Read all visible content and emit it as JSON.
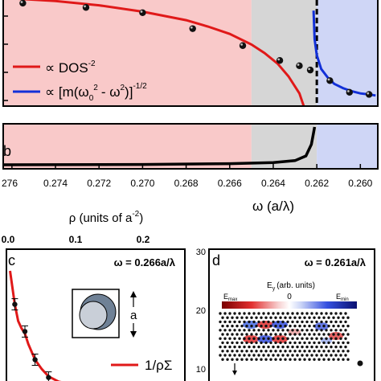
{
  "figure": {
    "x_axis": {
      "label": "ω (a/λ)",
      "ticks": [
        "276",
        "0.274",
        "0.272",
        "0.270",
        "0.268",
        "0.266",
        "0.264",
        "0.262",
        "0.260"
      ],
      "reversed": true,
      "range": [
        0.2764,
        0.2592
      ]
    },
    "top_axis": {
      "label": "ρ (units of a⁻²)",
      "ticks": [
        "0.0",
        "0.1",
        "0.2"
      ]
    },
    "colors": {
      "red_region": "#f9c9c9",
      "gray_region": "#d6d6d6",
      "blue_region": "#cfd6f6",
      "red_curve": "#e01919",
      "blue_curve": "#1230d8",
      "black": "#000000"
    }
  },
  "chart_data": [
    {
      "panel": "a",
      "type": "scatter",
      "x_range": [
        0.2764,
        0.2592
      ],
      "regions": [
        {
          "name": "red",
          "x": [
            0.2764,
            0.265
          ]
        },
        {
          "name": "gray",
          "x": [
            0.265,
            0.262
          ]
        },
        {
          "name": "blue",
          "x": [
            0.262,
            0.2592
          ]
        }
      ],
      "band_edge": 0.262,
      "points": [
        {
          "x": 0.2755,
          "y": 0.97
        },
        {
          "x": 0.2726,
          "y": 0.93
        },
        {
          "x": 0.27,
          "y": 0.88
        },
        {
          "x": 0.2677,
          "y": 0.73
        },
        {
          "x": 0.2654,
          "y": 0.57
        },
        {
          "x": 0.2637,
          "y": 0.43
        },
        {
          "x": 0.2628,
          "y": 0.38
        },
        {
          "x": 0.2623,
          "y": 0.34
        },
        {
          "x": 0.2614,
          "y": 0.24
        },
        {
          "x": 0.2605,
          "y": 0.13
        },
        {
          "x": 0.2596,
          "y": 0.11
        }
      ],
      "series": [
        {
          "name": "DOS⁻²",
          "legend_text": "∝ DOS",
          "legend_sup": "-2",
          "color": "#e01919",
          "x": [
            0.2764,
            0.274,
            0.272,
            0.27,
            0.268,
            0.267,
            0.266,
            0.265,
            0.2644,
            0.2638,
            0.2633,
            0.2628,
            0.2626
          ],
          "y": [
            1.02,
            0.99,
            0.95,
            0.89,
            0.81,
            0.75,
            0.68,
            0.58,
            0.5,
            0.4,
            0.28,
            0.12,
            0.0
          ]
        },
        {
          "name": "∝ [m(ω₀² - ω²)]^(-1/2)",
          "legend_text": "∝ [m(ω",
          "legend_sub": "0",
          "legend_mid": "- ω",
          "legend_tail": ")]",
          "legend_sup": "-1/2",
          "color": "#1230d8",
          "x": [
            0.26215,
            0.2621,
            0.262,
            0.2618,
            0.2615,
            0.2612,
            0.2608,
            0.2604,
            0.26,
            0.2596,
            0.2593
          ],
          "y": [
            0.9,
            0.63,
            0.48,
            0.35,
            0.27,
            0.21,
            0.17,
            0.14,
            0.12,
            0.11,
            0.1
          ]
        }
      ]
    },
    {
      "panel": "b",
      "label": "b",
      "type": "line",
      "x_range": [
        0.2764,
        0.2592
      ],
      "series": [
        {
          "name": "",
          "color": "#000000",
          "x": [
            0.2764,
            0.27,
            0.266,
            0.264,
            0.263,
            0.2625,
            0.26225,
            0.26215,
            0.2621
          ],
          "y": [
            0.02,
            0.03,
            0.05,
            0.08,
            0.13,
            0.25,
            0.55,
            0.85,
            1.0
          ]
        }
      ]
    },
    {
      "panel": "c",
      "label": "c",
      "type": "scatter",
      "annotation": "ω = 0.266a/λ",
      "legend": "1/ρΣ",
      "inset_label": "a",
      "points": [
        {
          "rho": 0.01,
          "y": 0.78
        },
        {
          "rho": 0.025,
          "y": 0.52
        },
        {
          "rho": 0.04,
          "y": 0.25
        },
        {
          "rho": 0.06,
          "y": 0.08
        }
      ],
      "series": [
        {
          "name": "1/ρΣ",
          "color": "#e01919",
          "x": [
            0.003,
            0.01,
            0.015,
            0.02,
            0.025,
            0.03,
            0.04,
            0.05,
            0.06,
            0.075,
            0.09
          ],
          "y": [
            1.1,
            0.78,
            0.62,
            0.55,
            0.5,
            0.4,
            0.25,
            0.16,
            0.09,
            0.04,
            0.02
          ]
        }
      ]
    },
    {
      "panel": "d",
      "label": "d",
      "type": "heatmap",
      "annotation": "ω = 0.261a/λ",
      "colorbar": {
        "title": "E",
        "title_sub": "y",
        "title_tail": "(arb. units)",
        "max_label": "E",
        "max_sub": "max",
        "zero_label": "0",
        "min_label": "E",
        "min_sub": "min"
      },
      "y_ticks": [
        "30",
        "20",
        "10"
      ]
    }
  ]
}
